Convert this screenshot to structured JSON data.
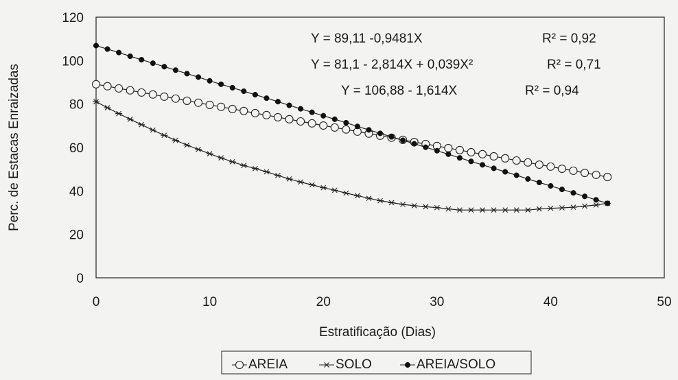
{
  "chart_data": {
    "type": "line",
    "title": "",
    "xlabel": "Estratificação (Dias)",
    "ylabel": "Perc. de Estacas Enraizadas",
    "xlim": [
      0,
      50
    ],
    "ylim": [
      0,
      120
    ],
    "xticks": [
      "0",
      "10",
      "20",
      "30",
      "40",
      "50"
    ],
    "yticks": [
      "0",
      "20",
      "40",
      "60",
      "80",
      "100",
      "120"
    ],
    "grid": false,
    "legend_position": "bottom",
    "x": [
      0,
      1,
      2,
      3,
      4,
      5,
      6,
      7,
      8,
      9,
      10,
      11,
      12,
      13,
      14,
      15,
      16,
      17,
      18,
      19,
      20,
      21,
      22,
      23,
      24,
      25,
      26,
      27,
      28,
      29,
      30,
      31,
      32,
      33,
      34,
      35,
      36,
      37,
      38,
      39,
      40,
      41,
      42,
      43,
      44,
      45
    ],
    "series": [
      {
        "name": "AREIA",
        "marker": "open-circle",
        "equation": "Y = 89,11 -0,9481X",
        "r2": "R² = 0,92",
        "values": [
          89.1,
          88.2,
          87.2,
          86.3,
          85.3,
          84.4,
          83.4,
          82.5,
          81.5,
          80.6,
          79.6,
          78.7,
          77.7,
          76.8,
          75.8,
          74.9,
          73.9,
          73.0,
          72.0,
          71.1,
          70.1,
          69.2,
          68.3,
          67.3,
          66.4,
          65.4,
          64.5,
          63.5,
          62.5,
          61.6,
          60.7,
          59.7,
          58.8,
          57.8,
          56.9,
          55.9,
          55.0,
          54.0,
          53.1,
          52.1,
          51.2,
          50.2,
          49.3,
          48.3,
          47.4,
          46.4
        ]
      },
      {
        "name": "SOLO",
        "marker": "star",
        "equation": "Y = 81,1 - 2,814X + 0,039X²",
        "r2": "R² = 0,71",
        "values": [
          81.1,
          78.3,
          75.6,
          73.0,
          70.5,
          68.0,
          65.6,
          63.3,
          61.1,
          59.1,
          57.1,
          55.2,
          53.4,
          51.7,
          50.3,
          48.8,
          47.1,
          45.5,
          44.1,
          42.8,
          41.5,
          40.3,
          39.0,
          37.8,
          36.6,
          35.5,
          34.6,
          33.8,
          33.2,
          32.7,
          32.3,
          31.7,
          31.2,
          31.2,
          31.2,
          31.2,
          31.2,
          31.2,
          31.2,
          31.7,
          32.0,
          32.2,
          32.5,
          33.0,
          33.5,
          34.3
        ]
      },
      {
        "name": "AREIA/SOLO",
        "marker": "filled-circle",
        "equation": "Y = 106,88 - 1,614X",
        "r2": "R² = 0,94",
        "values": [
          106.9,
          105.3,
          103.7,
          102.0,
          100.4,
          98.8,
          97.2,
          95.6,
          94.0,
          92.4,
          90.7,
          89.1,
          87.5,
          85.9,
          84.3,
          82.7,
          81.1,
          79.4,
          77.8,
          76.2,
          74.6,
          73.0,
          71.4,
          69.7,
          68.1,
          66.5,
          64.9,
          63.3,
          61.7,
          60.1,
          58.5,
          56.9,
          55.2,
          53.6,
          52.0,
          50.4,
          48.8,
          47.2,
          45.5,
          43.9,
          42.3,
          40.7,
          39.1,
          37.5,
          35.9,
          34.3
        ]
      }
    ],
    "annotations": [
      {
        "eq": "Y = 89,11 -0,9481X",
        "r2": "R² = 0,92"
      },
      {
        "eq": "Y = 81,1 - 2,814X + 0,039X²",
        "r2": "R² = 0,71"
      },
      {
        "eq": "Y = 106,88 - 1,614X",
        "r2": "R² = 0,94"
      }
    ]
  }
}
